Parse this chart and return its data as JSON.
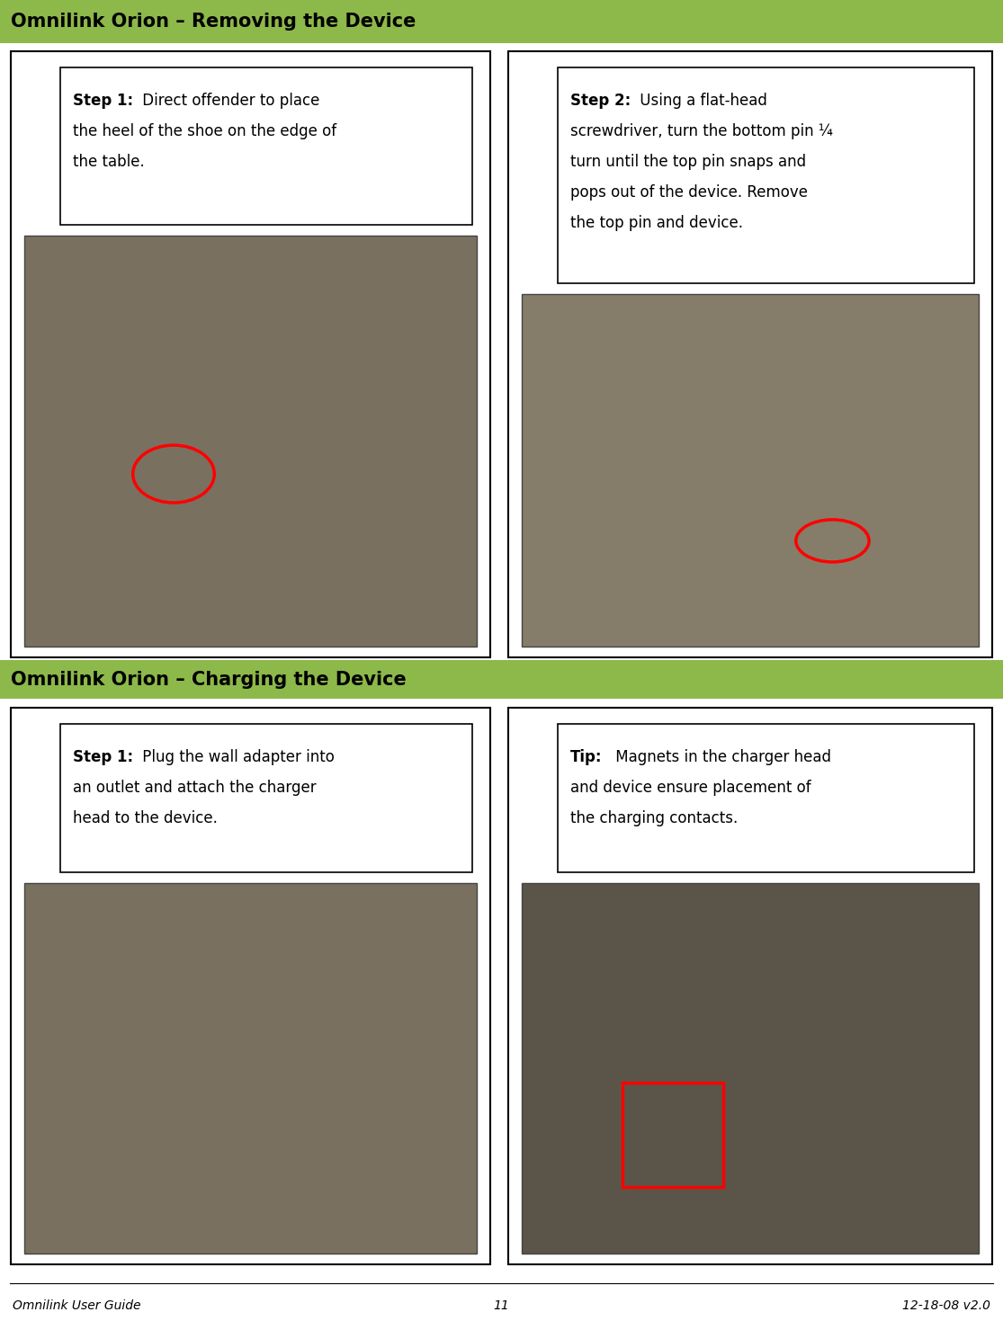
{
  "page_bg": "#ffffff",
  "header1_text": "Omnilink Orion – Removing the Device",
  "header2_text": "Omnilink Orion – Charging the Device",
  "header_bg": "#8db84a",
  "header_text_color": "#000000",
  "header_fontsize": 15,
  "footer_left": "Omnilink User Guide",
  "footer_center": "11",
  "footer_right": "12-18-08 v2.0",
  "footer_fontsize": 10,
  "text_fontsize": 12,
  "outer_border_color": "#000000",
  "inner_border_color": "#000000",
  "photo1_color": "#7a7060",
  "photo2_color": "#857d6a",
  "photo3_color": "#7a7060",
  "photo4_color": "#5a5548"
}
